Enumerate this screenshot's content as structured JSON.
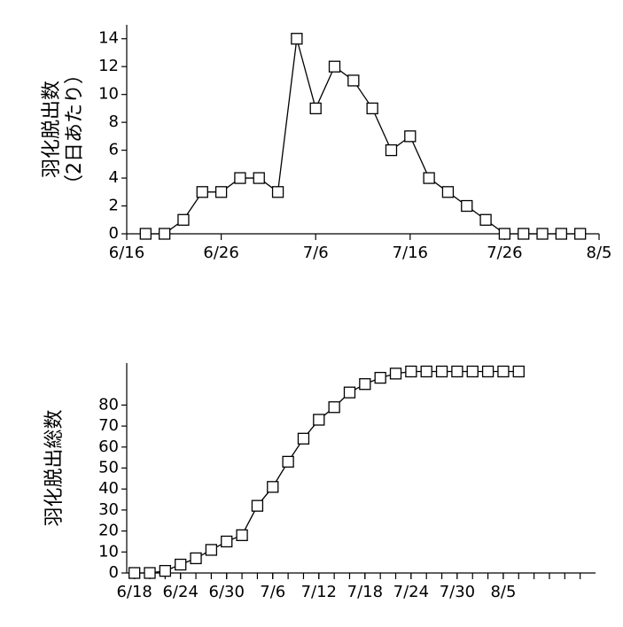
{
  "chart_data": [
    {
      "type": "line",
      "y_label": [
        "羽化脱出数",
        "（2日あたり）"
      ],
      "x": [
        169,
        171,
        173,
        175,
        177,
        179,
        181,
        183,
        185,
        187,
        189,
        191,
        193,
        195,
        197,
        199,
        201,
        203,
        205,
        207,
        209,
        211,
        213,
        215
      ],
      "series": [
        {
          "color": "#000000",
          "values": [
            0,
            0,
            1,
            3,
            3,
            4,
            4,
            3,
            14,
            9,
            12,
            11,
            9,
            6,
            7,
            4,
            3,
            2,
            1,
            0,
            0,
            0,
            0,
            0
          ]
        }
      ],
      "xlim": [
        167,
        217
      ],
      "xticks": [
        {
          "value": 167,
          "label": "6/16"
        },
        {
          "value": 177,
          "label": "6/26"
        },
        {
          "value": 187,
          "label": "7/6"
        },
        {
          "value": 197,
          "label": "7/16"
        },
        {
          "value": 207,
          "label": "7/26"
        },
        {
          "value": 217,
          "label": "8/5"
        }
      ],
      "ylim": [
        0,
        15
      ],
      "yticks": [
        0,
        2,
        4,
        6,
        8,
        10,
        12,
        14
      ],
      "marker": "square"
    },
    {
      "type": "line",
      "y_label": [
        "羽化脱出総数"
      ],
      "x": [
        169,
        171,
        173,
        175,
        177,
        179,
        181,
        183,
        185,
        187,
        189,
        191,
        193,
        195,
        197,
        199,
        201,
        203,
        205,
        207,
        209,
        211,
        213,
        215,
        217,
        219
      ],
      "series": [
        {
          "color": "#000000",
          "values": [
            0,
            0,
            1,
            4,
            7,
            11,
            15,
            18,
            32,
            41,
            53,
            64,
            73,
            79,
            86,
            90,
            93,
            95,
            96,
            96,
            96,
            96,
            96,
            96,
            96,
            96
          ]
        }
      ],
      "xlim": [
        168,
        229
      ],
      "xticks": [
        {
          "value": 169,
          "label": "6/18"
        },
        {
          "value": 175,
          "label": "6/24"
        },
        {
          "value": 181,
          "label": "6/30"
        },
        {
          "value": 187,
          "label": "7/6"
        },
        {
          "value": 193,
          "label": "7/12"
        },
        {
          "value": 199,
          "label": "7/18"
        },
        {
          "value": 205,
          "label": "7/24"
        },
        {
          "value": 211,
          "label": "7/30"
        },
        {
          "value": 217,
          "label": "8/5"
        }
      ],
      "x_minor_ticks": [
        169,
        171,
        173,
        175,
        177,
        179,
        181,
        183,
        185,
        187,
        189,
        191,
        193,
        195,
        197,
        199,
        201,
        203,
        205,
        207,
        209,
        211,
        213,
        215,
        217,
        219,
        221,
        223,
        225,
        227
      ],
      "ylim": [
        0,
        100
      ],
      "yticks": [
        0,
        10,
        20,
        30,
        40,
        50,
        60,
        70,
        80
      ],
      "marker": "square"
    }
  ]
}
